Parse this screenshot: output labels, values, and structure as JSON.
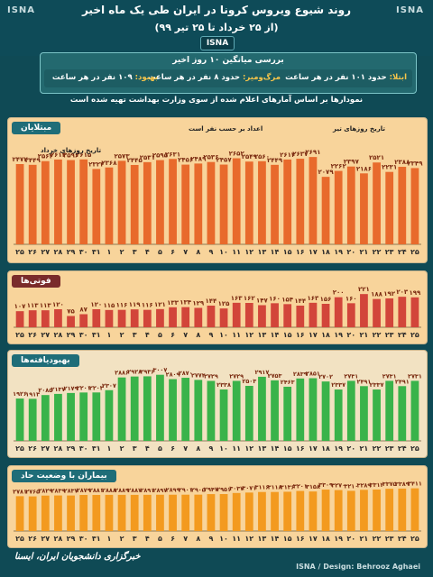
{
  "header": {
    "logo_left": "ISNA",
    "logo_right": "ISNA",
    "title": "روند شیوع ویروس کرونا در ایران طی یک ماه اخیر",
    "subtitle": "(از ۲۵ خرداد تا ۲۵ تیر ۹۹)",
    "tab": "ISNA"
  },
  "summary": {
    "heading": "بررسی میانگین ۱۰ روز اخیر",
    "infected_key": "ابتلا:",
    "infected_text": "حدود ۱۰۱ نفر در هر ساعت",
    "deaths_key": "مرگ‌ومیر:",
    "deaths_text": "حدود ۸ نفر در هر ساعت",
    "recovered_key": "بهبود:",
    "recovered_text": "۱۰۹ نفر در هر ساعت"
  },
  "note": "نمودارها بر اساس آمارهای اعلام شده از سوی وزارت بهداشت تهیه شده است",
  "footer": {
    "source": "خبرگزاری دانشجویان ایران، ایسنا",
    "credit": "ISNA / Design: Behrooz Aghaei"
  },
  "chart_data": [
    {
      "type": "bar",
      "title": "مبتلایان",
      "annotation_khordad": "تاریخ روزهای خرداد",
      "annotation_tir": "تاریخ روزهای تیر",
      "annotation_per_person": "اعداد بر حسب نفر است",
      "categories": [
        "۲۵",
        "۲۶",
        "۲۷",
        "۲۸",
        "۲۹",
        "۳۰",
        "۳۱",
        "۱",
        "۲",
        "۳",
        "۴",
        "۵",
        "۶",
        "۷",
        "۸",
        "۹",
        "۱۰",
        "۱۱",
        "۱۲",
        "۱۳",
        "۱۴",
        "۱۵",
        "۱۶",
        "۱۷",
        "۱۸",
        "۱۹",
        "۲۰",
        "۲۱",
        "۲۲",
        "۲۳",
        "۲۴",
        "۲۵"
      ],
      "values": [
        2472,
        2449,
        2563,
        2612,
        2596,
        2615,
        2322,
        2368,
        2573,
        2445,
        2531,
        2595,
        2631,
        2456,
        2489,
        2536,
        2457,
        2652,
        2549,
        2560,
        2449,
        2613,
        2637,
        2691,
        2079,
        2262,
        2397,
        2186,
        2521,
        2231,
        2388,
        2349
      ],
      "ylim": [
        0,
        3000
      ]
    },
    {
      "type": "bar",
      "title": "فوتی‌ها",
      "categories": [
        "۲۵",
        "۲۶",
        "۲۷",
        "۲۸",
        "۲۹",
        "۳۰",
        "۳۱",
        "۱",
        "۲",
        "۳",
        "۴",
        "۵",
        "۶",
        "۷",
        "۸",
        "۹",
        "۱۰",
        "۱۱",
        "۱۲",
        "۱۳",
        "۱۴",
        "۱۵",
        "۱۶",
        "۱۷",
        "۱۸",
        "۱۹",
        "۲۰",
        "۲۱",
        "۲۲",
        "۲۳",
        "۲۴",
        "۲۵"
      ],
      "values": [
        107,
        113,
        113,
        120,
        75,
        87,
        120,
        115,
        116,
        119,
        116,
        121,
        133,
        134,
        129,
        144,
        125,
        163,
        162,
        147,
        160,
        154,
        144,
        163,
        156,
        200,
        160,
        221,
        188,
        192,
        203,
        199
      ],
      "ylim": [
        0,
        240
      ]
    },
    {
      "type": "bar",
      "title": "بهبودیافته‌ها",
      "categories": [
        "۲۵",
        "۲۶",
        "۲۷",
        "۲۸",
        "۲۹",
        "۳۰",
        "۳۱",
        "۱",
        "۲",
        "۳",
        "۴",
        "۵",
        "۶",
        "۷",
        "۸",
        "۹",
        "۱۰",
        "۱۱",
        "۱۲",
        "۱۳",
        "۱۴",
        "۱۵",
        "۱۶",
        "۱۷",
        "۱۸",
        "۱۹",
        "۲۰",
        "۲۱",
        "۲۲",
        "۲۳",
        "۲۴",
        "۲۵"
      ],
      "values": [
        1926,
        1913,
        2085,
        2137,
        2179,
        2201,
        2203,
        2307,
        2886,
        2928,
        2936,
        3007,
        2809,
        2870,
        2774,
        2729,
        2338,
        2729,
        2503,
        2917,
        2753,
        2463,
        2839,
        2851,
        2702,
        2337,
        2731,
        2491,
        2337,
        2731,
        2491,
        2731
      ],
      "ylim": [
        0,
        3200
      ]
    },
    {
      "type": "bar",
      "title": "بیماران با وضعیت حاد",
      "categories": [
        "۲۵",
        "۲۶",
        "۲۷",
        "۲۸",
        "۲۹",
        "۳۰",
        "۳۱",
        "۱",
        "۲",
        "۳",
        "۴",
        "۵",
        "۶",
        "۷",
        "۸",
        "۹",
        "۱۰",
        "۱۱",
        "۱۲",
        "۱۳",
        "۱۴",
        "۱۵",
        "۱۶",
        "۱۷",
        "۱۸",
        "۱۹",
        "۲۰",
        "۲۱",
        "۲۲",
        "۲۳",
        "۲۴",
        "۲۵"
      ],
      "values": [
        2781,
        2765,
        2829,
        2839,
        2837,
        2879,
        2881,
        2888,
        2889,
        2887,
        2891,
        2897,
        2899,
        2901,
        2905,
        2947,
        2951,
        3037,
        3071,
        3116,
        3118,
        3136,
        3201,
        3158,
        3309,
        3270,
        3210,
        3289,
        3312,
        3375,
        3389,
        3411
      ],
      "ylim": [
        0,
        3600
      ]
    }
  ],
  "colors": {
    "background": "#0f4a55",
    "panel": "#f8d49b",
    "bar_infected": "#e86a2c",
    "bar_deaths": "#d2453a",
    "bar_recovered": "#39b34a",
    "bar_critical": "#f39a1f"
  }
}
